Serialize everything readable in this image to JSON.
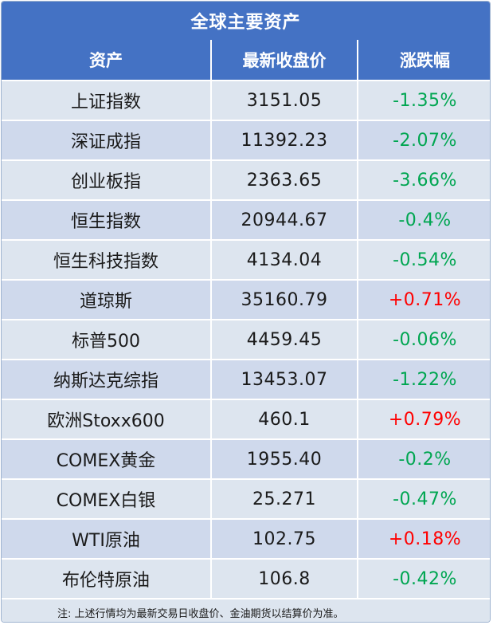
{
  "colors": {
    "header_bg": "#4472c4",
    "positive": "#ff0000",
    "negative": "#00a651"
  },
  "title": "全球主要资产",
  "columns": [
    "资产",
    "最新收盘价",
    "涨跌幅"
  ],
  "rows": [
    {
      "asset": "上证指数",
      "price": "3151.05",
      "change": "-1.35%",
      "dir": "down"
    },
    {
      "asset": "深证成指",
      "price": "11392.23",
      "change": "-2.07%",
      "dir": "down"
    },
    {
      "asset": "创业板指",
      "price": "2363.65",
      "change": "-3.66%",
      "dir": "down"
    },
    {
      "asset": "恒生指数",
      "price": "20944.67",
      "change": "-0.4%",
      "dir": "down"
    },
    {
      "asset": "恒生科技指数",
      "price": "4134.04",
      "change": "-0.54%",
      "dir": "down"
    },
    {
      "asset": "道琼斯",
      "price": "35160.79",
      "change": "+0.71%",
      "dir": "up"
    },
    {
      "asset": "标普500",
      "price": "4459.45",
      "change": "-0.06%",
      "dir": "down"
    },
    {
      "asset": "纳斯达克综指",
      "price": "13453.07",
      "change": "-1.22%",
      "dir": "down"
    },
    {
      "asset": "欧洲Stoxx600",
      "price": "460.1",
      "change": "+0.79%",
      "dir": "up"
    },
    {
      "asset": "COMEX黄金",
      "price": "1955.40",
      "change": "-0.2%",
      "dir": "down"
    },
    {
      "asset": "COMEX白银",
      "price": "25.271",
      "change": "-0.47%",
      "dir": "down"
    },
    {
      "asset": "WTI原油",
      "price": "102.75",
      "change": "+0.18%",
      "dir": "up"
    },
    {
      "asset": "布伦特原油",
      "price": "106.8",
      "change": "-0.42%",
      "dir": "down"
    }
  ],
  "note": "注: 上述行情均为最新交易日收盘价、金油期货以结算价为准。"
}
